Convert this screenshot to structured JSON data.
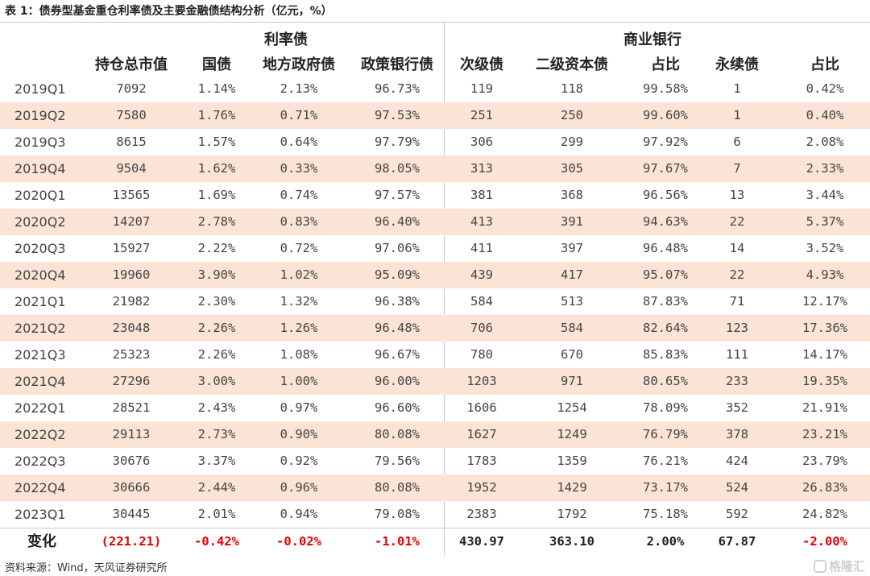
{
  "title": "表 1：债券型基金重仓利率债及主要金融债结构分析（亿元，%）",
  "group_headers": {
    "rate_bonds": "利率债",
    "commercial_banks": "商业银行"
  },
  "columns": [
    "持仓总市值",
    "国债",
    "地方政府债",
    "政策银行债",
    "次级债",
    "二级资本债",
    "占比",
    "永续债",
    "占比"
  ],
  "rows": [
    [
      "2019Q1",
      "7092",
      "1.14%",
      "2.13%",
      "96.73%",
      "119",
      "118",
      "99.58%",
      "1",
      "0.42%"
    ],
    [
      "2019Q2",
      "7580",
      "1.76%",
      "0.71%",
      "97.53%",
      "251",
      "250",
      "99.60%",
      "1",
      "0.40%"
    ],
    [
      "2019Q3",
      "8615",
      "1.57%",
      "0.64%",
      "97.79%",
      "306",
      "299",
      "97.92%",
      "6",
      "2.08%"
    ],
    [
      "2019Q4",
      "9504",
      "1.62%",
      "0.33%",
      "98.05%",
      "313",
      "305",
      "97.67%",
      "7",
      "2.33%"
    ],
    [
      "2020Q1",
      "13565",
      "1.69%",
      "0.74%",
      "97.57%",
      "381",
      "368",
      "96.56%",
      "13",
      "3.44%"
    ],
    [
      "2020Q2",
      "14207",
      "2.78%",
      "0.83%",
      "96.40%",
      "413",
      "391",
      "94.63%",
      "22",
      "5.37%"
    ],
    [
      "2020Q3",
      "15927",
      "2.22%",
      "0.72%",
      "97.06%",
      "411",
      "397",
      "96.48%",
      "14",
      "3.52%"
    ],
    [
      "2020Q4",
      "19960",
      "3.90%",
      "1.02%",
      "95.09%",
      "439",
      "417",
      "95.07%",
      "22",
      "4.93%"
    ],
    [
      "2021Q1",
      "21982",
      "2.30%",
      "1.32%",
      "96.38%",
      "584",
      "513",
      "87.83%",
      "71",
      "12.17%"
    ],
    [
      "2021Q2",
      "23048",
      "2.26%",
      "1.26%",
      "96.48%",
      "706",
      "584",
      "82.64%",
      "123",
      "17.36%"
    ],
    [
      "2021Q3",
      "25323",
      "2.26%",
      "1.08%",
      "96.67%",
      "780",
      "670",
      "85.83%",
      "111",
      "14.17%"
    ],
    [
      "2021Q4",
      "27296",
      "3.00%",
      "1.00%",
      "96.00%",
      "1203",
      "971",
      "80.65%",
      "233",
      "19.35%"
    ],
    [
      "2022Q1",
      "28521",
      "2.43%",
      "0.97%",
      "96.60%",
      "1606",
      "1254",
      "78.09%",
      "352",
      "21.91%"
    ],
    [
      "2022Q2",
      "29113",
      "2.73%",
      "0.90%",
      "80.08%",
      "1627",
      "1249",
      "76.79%",
      "378",
      "23.21%"
    ],
    [
      "2022Q3",
      "30676",
      "3.37%",
      "0.92%",
      "79.56%",
      "1783",
      "1359",
      "76.21%",
      "424",
      "23.79%"
    ],
    [
      "2022Q4",
      "30666",
      "2.44%",
      "0.96%",
      "80.08%",
      "1952",
      "1429",
      "73.17%",
      "524",
      "26.83%"
    ],
    [
      "2023Q1",
      "30445",
      "2.01%",
      "0.94%",
      "79.08%",
      "2383",
      "1792",
      "75.18%",
      "592",
      "24.82%"
    ]
  ],
  "change_row": [
    "变化",
    "(221.21)",
    "-0.42%",
    "-0.02%",
    "-1.01%",
    "430.97",
    "363.10",
    "2.00%",
    "67.87",
    "-2.00%"
  ],
  "source": "资料来源：Wind，天风证券研究所",
  "watermark": "格隆汇",
  "colors": {
    "row_shade": "#fbe4d6",
    "negative": "#e60000"
  }
}
